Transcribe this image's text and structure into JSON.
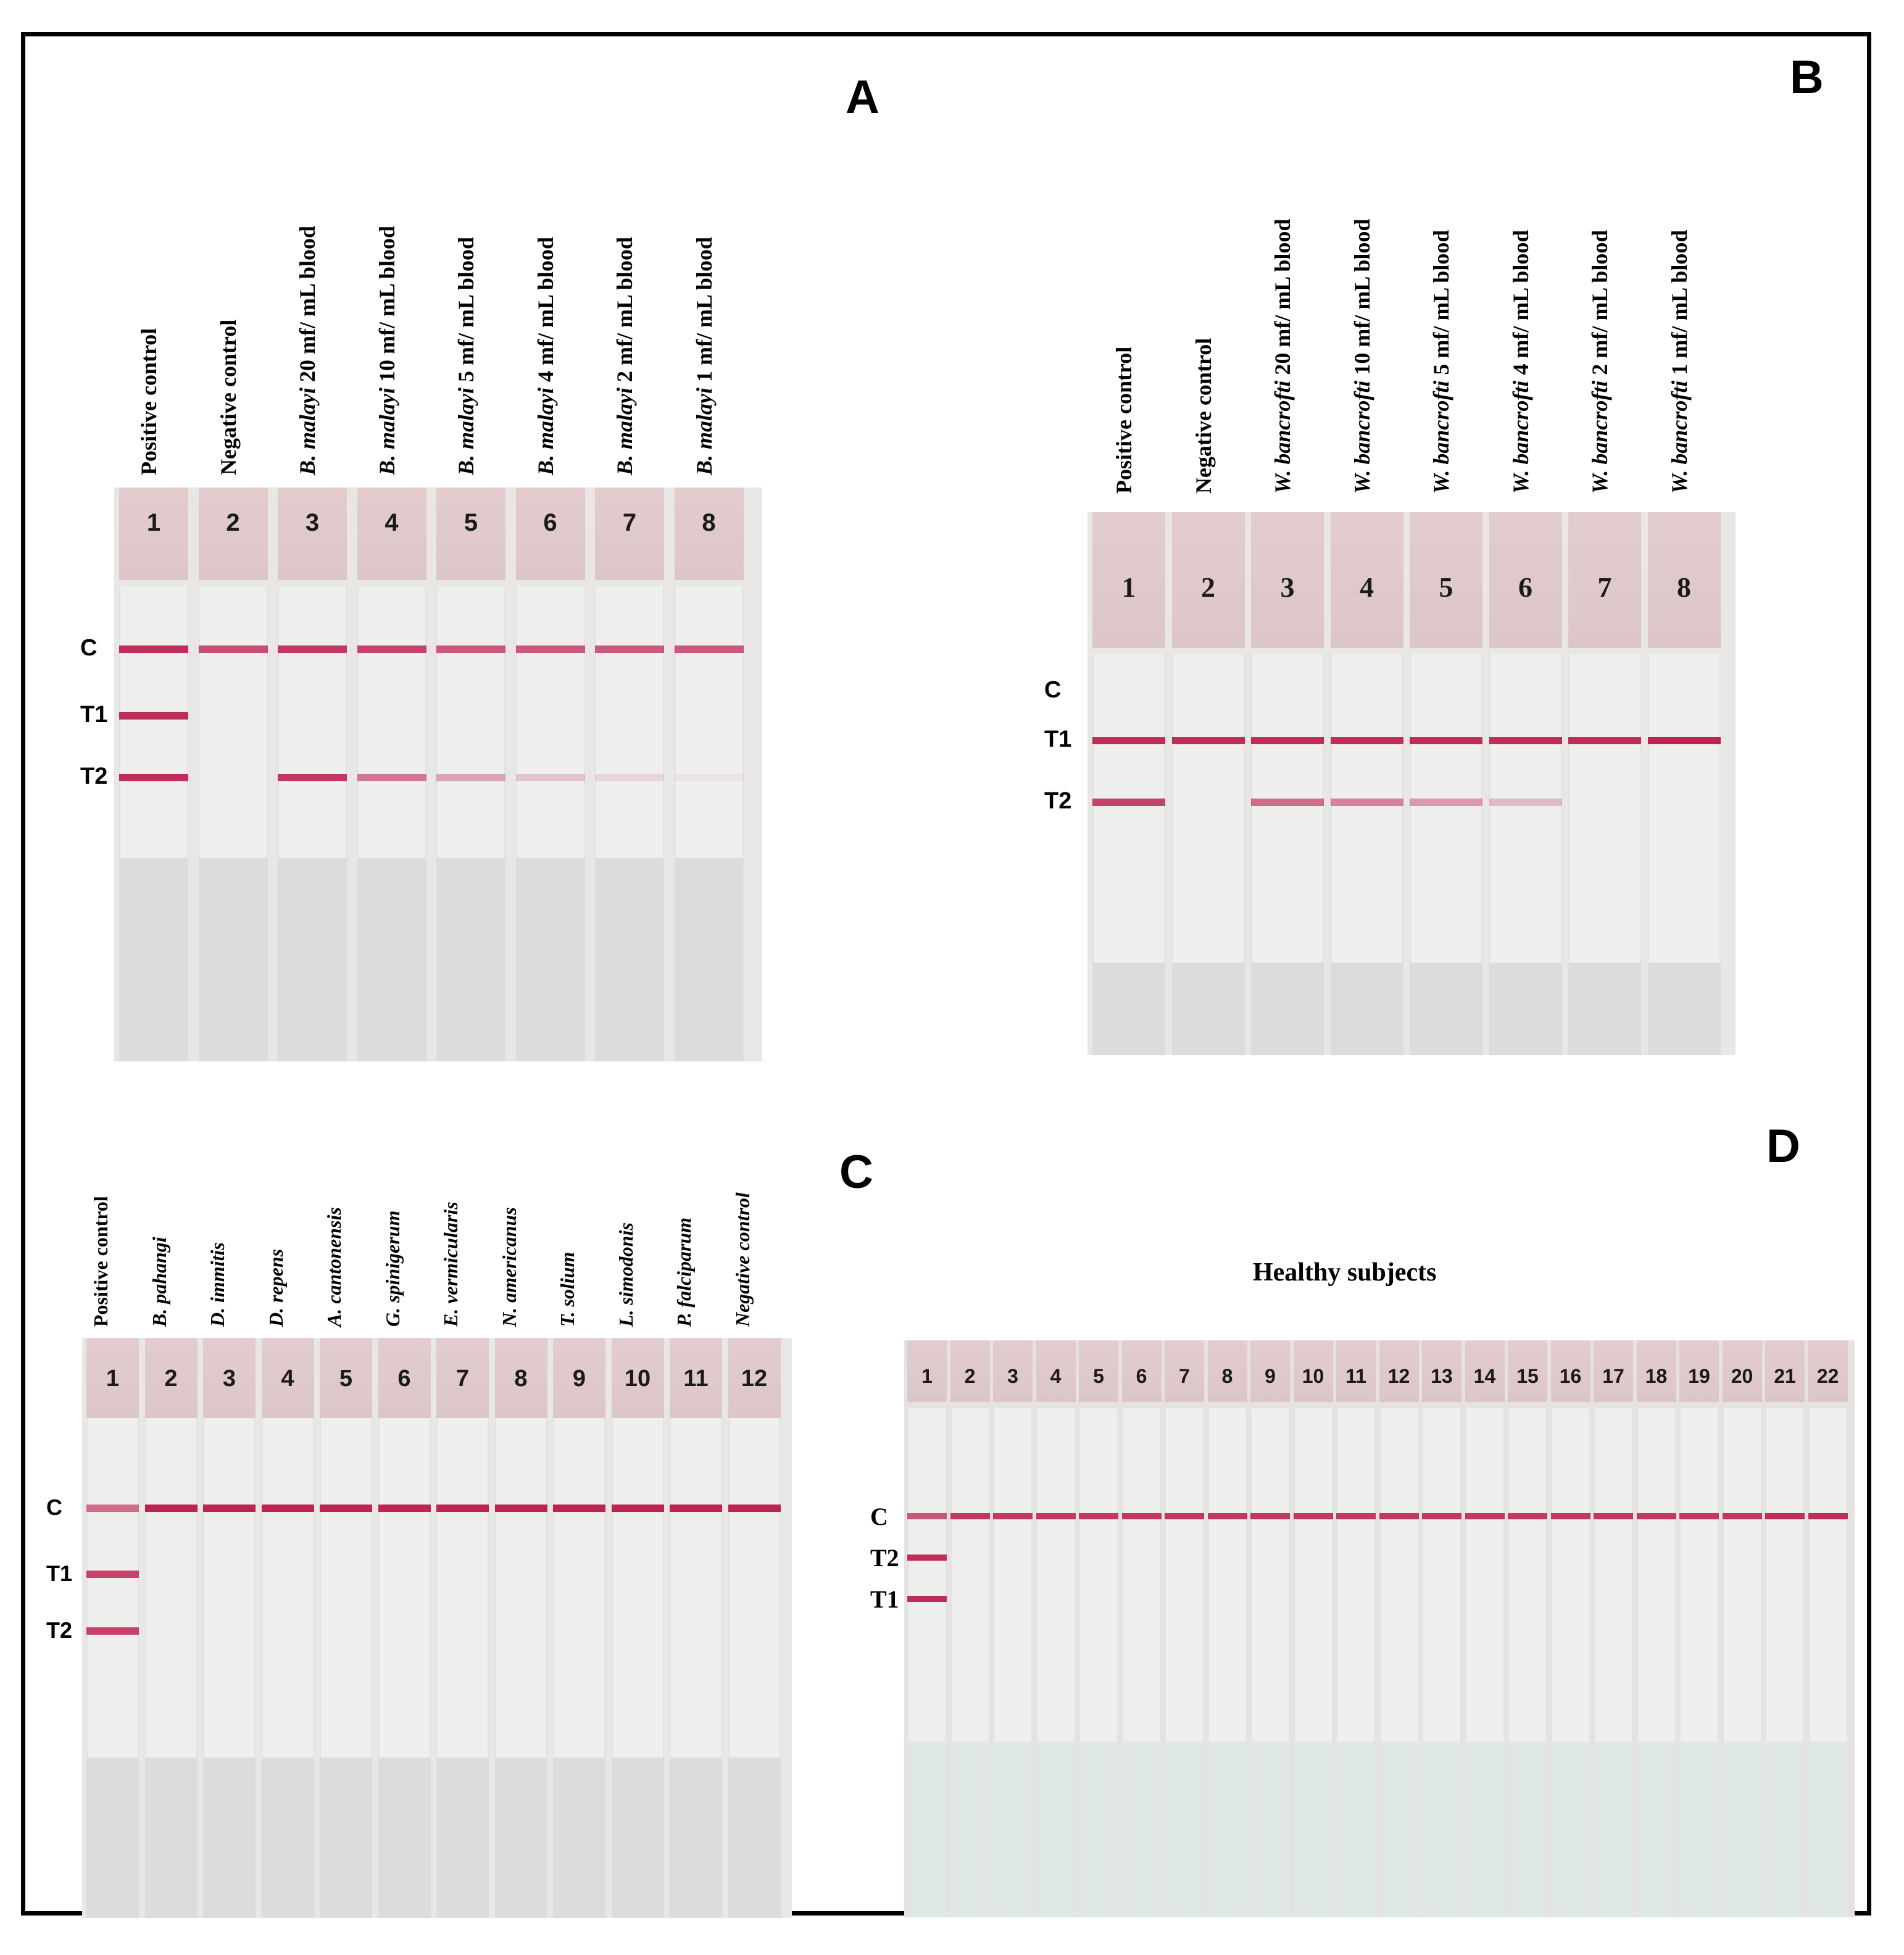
{
  "panels": {
    "A": {
      "letter": "A",
      "rows": [
        "C",
        "T1",
        "T2"
      ],
      "lanes": [
        {
          "num": "1",
          "italic": "",
          "rest": "Positive control"
        },
        {
          "num": "2",
          "italic": "",
          "rest": "Negative control"
        },
        {
          "num": "3",
          "italic": "B. malayi",
          "rest": " 20 mf/ mL blood"
        },
        {
          "num": "4",
          "italic": "B. malayi",
          "rest": " 10 mf/ mL blood"
        },
        {
          "num": "5",
          "italic": "B. malayi",
          "rest": " 5 mf/ mL blood"
        },
        {
          "num": "6",
          "italic": "B. malayi",
          "rest": " 4 mf/ mL blood"
        },
        {
          "num": "7",
          "italic": "B. malayi",
          "rest": " 2 mf/ mL blood"
        },
        {
          "num": "8",
          "italic": "B. malayi",
          "rest": " 1 mf/ mL blood"
        }
      ]
    },
    "B": {
      "letter": "B",
      "rows": [
        "C",
        "T1",
        "T2"
      ],
      "lanes": [
        {
          "num": "1",
          "italic": "",
          "rest": "Positive control"
        },
        {
          "num": "2",
          "italic": "",
          "rest": "Negative control"
        },
        {
          "num": "3",
          "italic": "W. bancrofti",
          "rest": " 20 mf/ mL blood"
        },
        {
          "num": "4",
          "italic": "W. bancrofti",
          "rest": " 10 mf/ mL blood"
        },
        {
          "num": "5",
          "italic": "W. bancrofti",
          "rest": " 5 mf/ mL blood"
        },
        {
          "num": "6",
          "italic": "W. bancrofti",
          "rest": " 4 mf/ mL blood"
        },
        {
          "num": "7",
          "italic": "W. bancrofti",
          "rest": " 2 mf/ mL blood"
        },
        {
          "num": "8",
          "italic": "W. bancrofti",
          "rest": " 1 mf/ mL blood"
        }
      ]
    },
    "C": {
      "letter": "C",
      "rows": [
        "C",
        "T1",
        "T2"
      ],
      "lanes": [
        {
          "num": "1",
          "italic": "",
          "rest": "Positive control"
        },
        {
          "num": "2",
          "italic": "B. pahangi",
          "rest": ""
        },
        {
          "num": "3",
          "italic": "D. immitis",
          "rest": ""
        },
        {
          "num": "4",
          "italic": "D. repens",
          "rest": ""
        },
        {
          "num": "5",
          "italic": "A. cantonensis",
          "rest": ""
        },
        {
          "num": "6",
          "italic": "G. spinigerum",
          "rest": ""
        },
        {
          "num": "7",
          "italic": "E. vermicularis",
          "rest": ""
        },
        {
          "num": "8",
          "italic": "N. americanus",
          "rest": ""
        },
        {
          "num": "9",
          "italic": "T. solium",
          "rest": ""
        },
        {
          "num": "10",
          "italic": "L. simodonis",
          "rest": ""
        },
        {
          "num": "11",
          "italic": "P. falciparum",
          "rest": ""
        },
        {
          "num": "12",
          "italic": "Negative control",
          "rest": ""
        }
      ]
    },
    "D": {
      "letter": "D",
      "title": "Healthy subjects",
      "rows": [
        "C",
        "T2",
        "T1"
      ],
      "lanes": [
        "1",
        "2",
        "3",
        "4",
        "5",
        "6",
        "7",
        "8",
        "9",
        "10",
        "11",
        "12",
        "13",
        "14",
        "15",
        "16",
        "17",
        "18",
        "19",
        "20",
        "21",
        "22"
      ]
    }
  },
  "band_intensity": {
    "A": [
      [
        0.9,
        0.9,
        0.9
      ],
      [
        0.75,
        0,
        0
      ],
      [
        0.85,
        0,
        0.85
      ],
      [
        0.8,
        0,
        0.55
      ],
      [
        0.7,
        0,
        0.35
      ],
      [
        0.7,
        0,
        0.2
      ],
      [
        0.7,
        0,
        0.12
      ],
      [
        0.7,
        0,
        0.06
      ]
    ],
    "B": [
      [
        0,
        0.9,
        0.8
      ],
      [
        0,
        0.9,
        0
      ],
      [
        0,
        0.9,
        0.6
      ],
      [
        0,
        0.9,
        0.5
      ],
      [
        0,
        0.9,
        0.4
      ],
      [
        0,
        0.9,
        0.25
      ],
      [
        0,
        0.9,
        0
      ],
      [
        0,
        0.95,
        0
      ]
    ],
    "C": [
      [
        0.6,
        0.8,
        0.8
      ],
      [
        0.95,
        0,
        0
      ],
      [
        0.95,
        0,
        0
      ],
      [
        0.95,
        0,
        0
      ],
      [
        0.95,
        0,
        0
      ],
      [
        0.95,
        0,
        0
      ],
      [
        0.95,
        0,
        0
      ],
      [
        0.95,
        0,
        0
      ],
      [
        0.95,
        0,
        0
      ],
      [
        0.95,
        0,
        0
      ],
      [
        0.95,
        0,
        0
      ],
      [
        0.95,
        0,
        0
      ]
    ],
    "D": [
      [
        0.7,
        0.9,
        0.9
      ],
      [
        0.85,
        0,
        0
      ],
      [
        0.85,
        0,
        0
      ],
      [
        0.85,
        0,
        0
      ],
      [
        0.85,
        0,
        0
      ],
      [
        0.85,
        0,
        0
      ],
      [
        0.85,
        0,
        0
      ],
      [
        0.85,
        0,
        0
      ],
      [
        0.85,
        0,
        0
      ],
      [
        0.85,
        0,
        0
      ],
      [
        0.85,
        0,
        0
      ],
      [
        0.85,
        0,
        0
      ],
      [
        0.85,
        0,
        0
      ],
      [
        0.85,
        0,
        0
      ],
      [
        0.85,
        0,
        0
      ],
      [
        0.85,
        0,
        0
      ],
      [
        0.85,
        0,
        0
      ],
      [
        0.85,
        0,
        0
      ],
      [
        0.85,
        0,
        0
      ],
      [
        0.85,
        0,
        0
      ],
      [
        0.9,
        0,
        0
      ],
      [
        0.9,
        0,
        0
      ]
    ]
  },
  "colors": {
    "band": "#b8184a",
    "frame": "#000000",
    "membrane": "#eff0ee",
    "sample_pad": "#e2cccd"
  }
}
